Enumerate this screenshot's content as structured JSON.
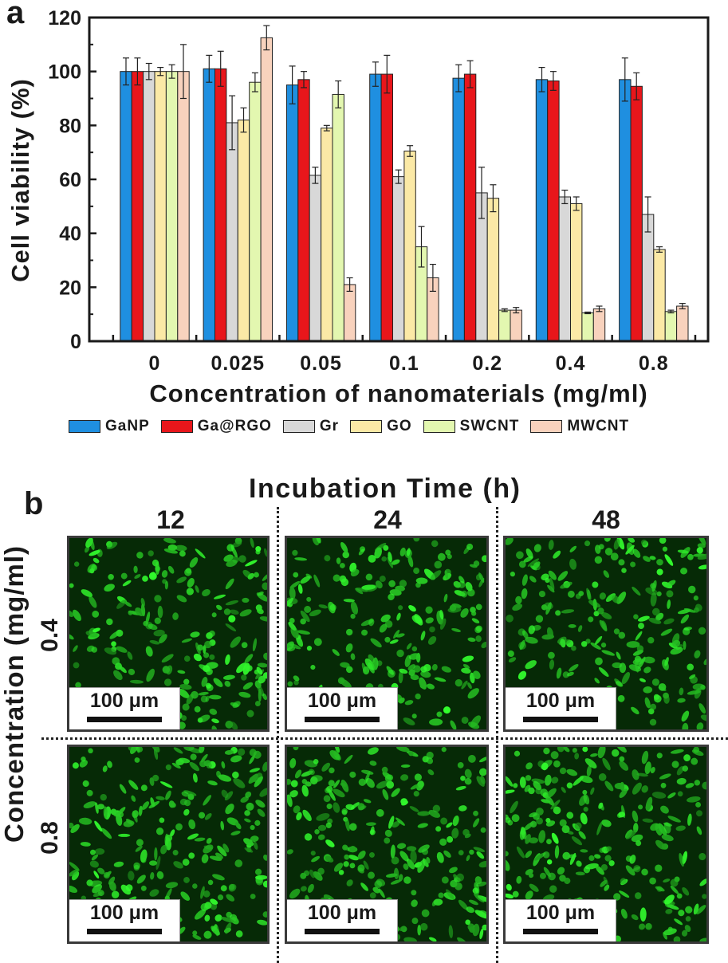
{
  "panel_a": {
    "label": "a"
  },
  "panel_b": {
    "label": "b"
  },
  "chart_data": {
    "type": "bar",
    "title": "",
    "xlabel": "Concentration of nanomaterials (mg/ml)",
    "ylabel": "Cell viability (%)",
    "ylim": [
      0,
      120
    ],
    "yticks": [
      0,
      20,
      40,
      60,
      80,
      100,
      120
    ],
    "categories": [
      "0",
      "0.025",
      "0.05",
      "0.1",
      "0.2",
      "0.4",
      "0.8"
    ],
    "series": [
      {
        "name": "GaNP",
        "color": "#1f8fe0",
        "values": [
          100,
          101,
          95,
          99,
          97.5,
          97,
          97
        ],
        "errors": [
          5,
          5,
          7,
          4.5,
          5,
          4.5,
          8
        ]
      },
      {
        "name": "Ga@RGO",
        "color": "#e8161b",
        "values": [
          100,
          101,
          97,
          99,
          99,
          96.5,
          94.5
        ],
        "errors": [
          5,
          6.5,
          3,
          7,
          5,
          3.5,
          5
        ]
      },
      {
        "name": "Gr",
        "color": "#d8d8d8",
        "values": [
          100,
          81,
          61.5,
          61,
          55,
          53.5,
          47
        ],
        "errors": [
          3,
          10,
          3,
          2.5,
          9.5,
          2.5,
          6.5
        ]
      },
      {
        "name": "GO",
        "color": "#fbe9a6",
        "values": [
          100,
          82,
          79,
          70.5,
          53,
          51,
          34
        ],
        "errors": [
          1.5,
          4.5,
          1,
          2,
          5,
          2.5,
          1
        ]
      },
      {
        "name": "SWCNT",
        "color": "#e3f7b0",
        "values": [
          100,
          96,
          91.5,
          35,
          11.5,
          10.5,
          11
        ],
        "errors": [
          2.5,
          3.5,
          5,
          7.5,
          0.5,
          0.3,
          0.5
        ]
      },
      {
        "name": "MWCNT",
        "color": "#f8d2bd",
        "values": [
          100,
          112.5,
          21,
          23.5,
          11.5,
          12,
          13
        ],
        "errors": [
          10,
          4.5,
          2.5,
          5,
          1,
          1,
          1
        ]
      }
    ]
  },
  "incubation": {
    "title": "Incubation Time (h)",
    "columns": [
      "12",
      "24",
      "48"
    ],
    "rows_title": "Concentration (mg/ml)",
    "rows": [
      "0.4",
      "0.8"
    ],
    "scale_bar": "100 μm"
  }
}
